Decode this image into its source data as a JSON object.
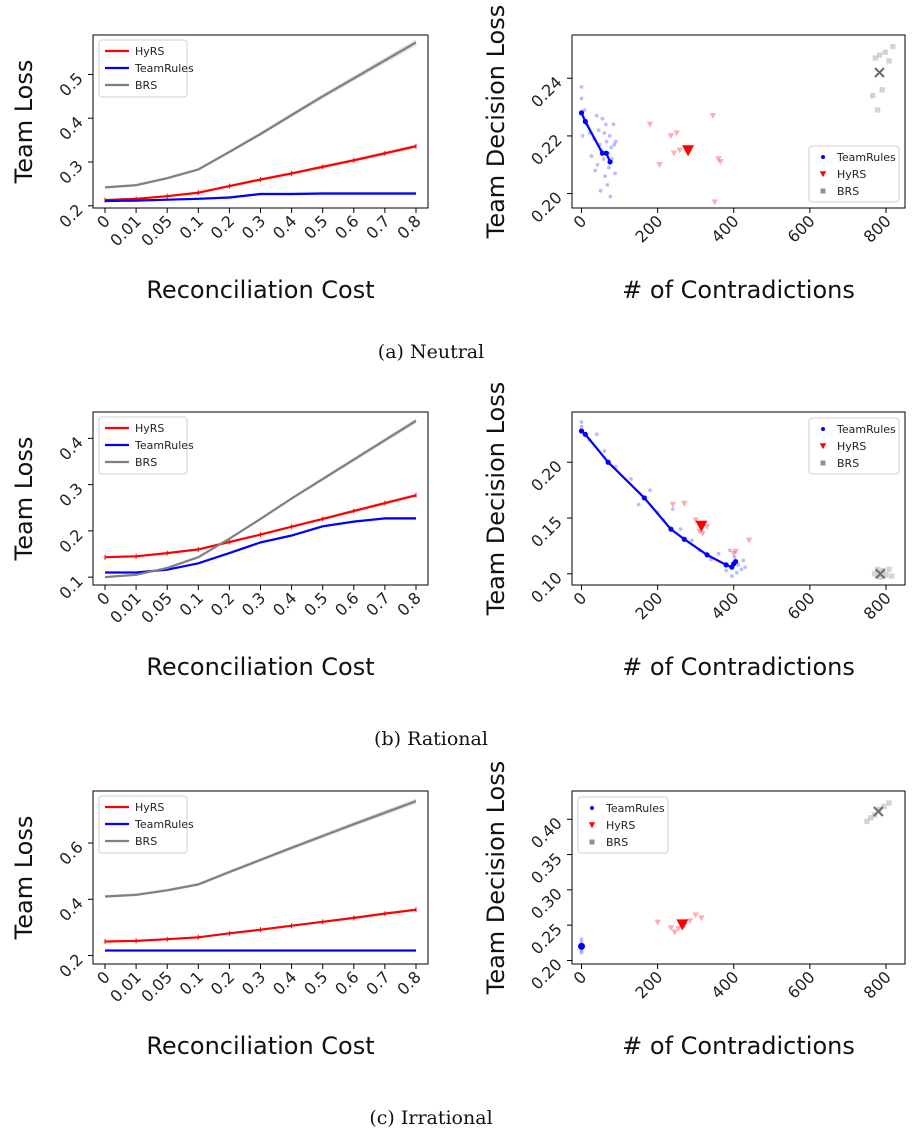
{
  "colors": {
    "hyrs": "#ff0000",
    "teamrules": "#0000ff",
    "brs": "#808080"
  },
  "captions": [
    "(a) Neutral",
    "(b) Rational",
    "(c) Irrational"
  ],
  "chart_data": [
    {
      "type": "line",
      "panel": "a-left",
      "xlabel": "Reconciliation Cost",
      "ylabel": "Team Loss",
      "categories": [
        "0",
        "0.01",
        "0.05",
        "0.1",
        "0.2",
        "0.3",
        "0.4",
        "0.5",
        "0.6",
        "0.7",
        "0.8"
      ],
      "ylim": [
        0.195,
        0.59
      ],
      "yticks": [
        0.2,
        0.3,
        0.4,
        0.5
      ],
      "ytick_labels": [
        "0.2",
        "0.3",
        "0.4",
        "0.5"
      ],
      "legend": "top-left",
      "series": [
        {
          "name": "HyRS",
          "key": "hyrs",
          "values": [
            0.213,
            0.216,
            0.222,
            0.23,
            0.245,
            0.26,
            0.274,
            0.289,
            0.304,
            0.32,
            0.336
          ]
        },
        {
          "name": "TeamRules",
          "key": "teamrules",
          "values": [
            0.211,
            0.212,
            0.214,
            0.216,
            0.219,
            0.227,
            0.227,
            0.228,
            0.228,
            0.228,
            0.228
          ]
        },
        {
          "name": "BRS",
          "key": "brs",
          "values": [
            0.242,
            0.247,
            0.263,
            0.283,
            0.323,
            0.364,
            0.407,
            0.45,
            0.491,
            0.532,
            0.573
          ]
        }
      ]
    },
    {
      "type": "scatter",
      "panel": "a-right",
      "xlabel": "# of Contradictions",
      "ylabel": "Team Decision Loss",
      "xlim": [
        -25,
        850
      ],
      "ylim": [
        0.195,
        0.255
      ],
      "xticks": [
        0,
        200,
        400,
        600,
        800
      ],
      "yticks": [
        0.2,
        0.22,
        0.24
      ],
      "ytick_labels": [
        "0.20",
        "0.22",
        "0.24"
      ],
      "legend": "lower-right",
      "legend_order": [
        "teamrules",
        "hyrs",
        "brs"
      ],
      "teamrules_path": [
        [
          0,
          0.228
        ],
        [
          10,
          0.225
        ],
        [
          55,
          0.214
        ],
        [
          65,
          0.214
        ],
        [
          75,
          0.211
        ]
      ],
      "teamrules_points": [
        [
          0,
          0.237
        ],
        [
          0,
          0.233
        ],
        [
          3,
          0.22
        ],
        [
          8,
          0.229
        ],
        [
          14,
          0.224
        ],
        [
          22,
          0.221
        ],
        [
          26,
          0.213
        ],
        [
          33,
          0.219
        ],
        [
          36,
          0.208
        ],
        [
          40,
          0.227
        ],
        [
          42,
          0.21
        ],
        [
          45,
          0.222
        ],
        [
          48,
          0.217
        ],
        [
          50,
          0.201
        ],
        [
          52,
          0.215
        ],
        [
          55,
          0.226
        ],
        [
          58,
          0.212
        ],
        [
          60,
          0.221
        ],
        [
          62,
          0.206
        ],
        [
          64,
          0.224
        ],
        [
          66,
          0.218
        ],
        [
          68,
          0.203
        ],
        [
          70,
          0.214
        ],
        [
          72,
          0.209
        ],
        [
          74,
          0.22
        ],
        [
          76,
          0.199
        ],
        [
          78,
          0.216
        ],
        [
          80,
          0.212
        ],
        [
          84,
          0.224
        ],
        [
          86,
          0.217
        ],
        [
          88,
          0.207
        ],
        [
          90,
          0.218
        ]
      ],
      "hyrs_points": [
        [
          180,
          0.224
        ],
        [
          205,
          0.21
        ],
        [
          235,
          0.22
        ],
        [
          243,
          0.214
        ],
        [
          250,
          0.221
        ],
        [
          258,
          0.215
        ],
        [
          345,
          0.227
        ],
        [
          350,
          0.197
        ],
        [
          360,
          0.212
        ],
        [
          365,
          0.211
        ]
      ],
      "hyrs_mean": [
        280,
        0.215
      ],
      "brs_points": [
        [
          765,
          0.234
        ],
        [
          772,
          0.247
        ],
        [
          778,
          0.229
        ],
        [
          783,
          0.248
        ],
        [
          790,
          0.236
        ],
        [
          798,
          0.249
        ],
        [
          808,
          0.246
        ],
        [
          818,
          0.251
        ]
      ],
      "brs_mean": [
        783,
        0.242
      ]
    },
    {
      "type": "line",
      "panel": "b-left",
      "xlabel": "Reconciliation Cost",
      "ylabel": "Team Loss",
      "categories": [
        "0",
        "0.01",
        "0.05",
        "0.1",
        "0.2",
        "0.3",
        "0.4",
        "0.5",
        "0.6",
        "0.7",
        "0.8"
      ],
      "ylim": [
        0.083,
        0.457
      ],
      "yticks": [
        0.1,
        0.2,
        0.3,
        0.4
      ],
      "ytick_labels": [
        "0.1",
        "0.2",
        "0.3",
        "0.4"
      ],
      "legend": "top-left",
      "series": [
        {
          "name": "HyRS",
          "key": "hyrs",
          "values": [
            0.143,
            0.145,
            0.152,
            0.16,
            0.176,
            0.192,
            0.209,
            0.226,
            0.243,
            0.26,
            0.277
          ]
        },
        {
          "name": "TeamRules",
          "key": "teamrules",
          "values": [
            0.11,
            0.11,
            0.116,
            0.13,
            0.152,
            0.175,
            0.19,
            0.21,
            0.22,
            0.227,
            0.227
          ]
        },
        {
          "name": "BRS",
          "key": "brs",
          "values": [
            0.1,
            0.105,
            0.12,
            0.143,
            0.183,
            0.226,
            0.27,
            0.312,
            0.354,
            0.396,
            0.438
          ]
        }
      ]
    },
    {
      "type": "scatter",
      "panel": "b-right",
      "xlabel": "# of Contradictions",
      "ylabel": "Team Decision Loss",
      "xlim": [
        -25,
        850
      ],
      "ylim": [
        0.09,
        0.245
      ],
      "xticks": [
        0,
        200,
        400,
        600,
        800
      ],
      "yticks": [
        0.1,
        0.15,
        0.2
      ],
      "ytick_labels": [
        "0.10",
        "0.15",
        "0.20"
      ],
      "legend": "top-right",
      "legend_order": [
        "teamrules",
        "hyrs",
        "brs"
      ],
      "teamrules_path": [
        [
          0,
          0.228
        ],
        [
          10,
          0.225
        ],
        [
          70,
          0.2
        ],
        [
          165,
          0.168
        ],
        [
          235,
          0.14
        ],
        [
          270,
          0.131
        ],
        [
          330,
          0.117
        ],
        [
          380,
          0.108
        ],
        [
          395,
          0.106
        ],
        [
          400,
          0.109
        ],
        [
          405,
          0.111
        ]
      ],
      "teamrules_points": [
        [
          0,
          0.236
        ],
        [
          0,
          0.232
        ],
        [
          20,
          0.22
        ],
        [
          40,
          0.225
        ],
        [
          60,
          0.21
        ],
        [
          90,
          0.196
        ],
        [
          130,
          0.185
        ],
        [
          150,
          0.162
        ],
        [
          180,
          0.175
        ],
        [
          200,
          0.155
        ],
        [
          215,
          0.148
        ],
        [
          240,
          0.158
        ],
        [
          260,
          0.14
        ],
        [
          290,
          0.13
        ],
        [
          310,
          0.121
        ],
        [
          340,
          0.113
        ],
        [
          360,
          0.118
        ],
        [
          380,
          0.103
        ],
        [
          390,
          0.121
        ],
        [
          395,
          0.098
        ],
        [
          402,
          0.115
        ],
        [
          408,
          0.101
        ],
        [
          412,
          0.108
        ],
        [
          420,
          0.104
        ],
        [
          425,
          0.112
        ],
        [
          430,
          0.106
        ]
      ],
      "hyrs_points": [
        [
          240,
          0.162
        ],
        [
          270,
          0.163
        ],
        [
          300,
          0.148
        ],
        [
          310,
          0.138
        ],
        [
          318,
          0.136
        ],
        [
          322,
          0.145
        ],
        [
          330,
          0.142
        ],
        [
          400,
          0.118
        ],
        [
          405,
          0.12
        ],
        [
          440,
          0.13
        ]
      ],
      "hyrs_mean": [
        315,
        0.143
      ],
      "brs_points": [
        [
          770,
          0.1
        ],
        [
          778,
          0.104
        ],
        [
          785,
          0.097
        ],
        [
          792,
          0.103
        ],
        [
          800,
          0.099
        ],
        [
          808,
          0.104
        ],
        [
          815,
          0.098
        ]
      ],
      "brs_mean": [
        785,
        0.1
      ]
    },
    {
      "type": "line",
      "panel": "c-left",
      "xlabel": "Reconciliation Cost",
      "ylabel": "Team Loss",
      "categories": [
        "0",
        "0.01",
        "0.05",
        "0.1",
        "0.2",
        "0.3",
        "0.4",
        "0.5",
        "0.6",
        "0.7",
        "0.8"
      ],
      "ylim": [
        0.17,
        0.785
      ],
      "yticks": [
        0.2,
        0.4,
        0.6
      ],
      "ytick_labels": [
        "0.2",
        "0.4",
        "0.6"
      ],
      "legend": "top-left",
      "series": [
        {
          "name": "HyRS",
          "key": "hyrs",
          "values": [
            0.25,
            0.252,
            0.258,
            0.265,
            0.279,
            0.292,
            0.306,
            0.32,
            0.334,
            0.349,
            0.363
          ]
        },
        {
          "name": "TeamRules",
          "key": "teamrules",
          "values": [
            0.218,
            0.218,
            0.218,
            0.218,
            0.218,
            0.218,
            0.218,
            0.218,
            0.218,
            0.218,
            0.218
          ]
        },
        {
          "name": "BRS",
          "key": "brs",
          "values": [
            0.41,
            0.416,
            0.432,
            0.453,
            0.497,
            0.54,
            0.583,
            0.625,
            0.667,
            0.708,
            0.749
          ]
        }
      ]
    },
    {
      "type": "scatter",
      "panel": "c-right",
      "xlabel": "# of Contradictions",
      "ylabel": "Team Decision Loss",
      "xlim": [
        -25,
        850
      ],
      "ylim": [
        0.195,
        0.44
      ],
      "xticks": [
        0,
        200,
        400,
        600,
        800
      ],
      "yticks": [
        0.2,
        0.25,
        0.3,
        0.35,
        0.4
      ],
      "ytick_labels": [
        "0.20",
        "0.25",
        "0.30",
        "0.35",
        "0.40"
      ],
      "legend": "top-left",
      "legend_order": [
        "teamrules",
        "hyrs",
        "brs"
      ],
      "teamrules_path": [],
      "teamrules_points": [
        [
          0,
          0.23
        ],
        [
          0,
          0.226
        ],
        [
          0,
          0.214
        ],
        [
          0,
          0.211
        ]
      ],
      "teamrules_mean": [
        0,
        0.22
      ],
      "hyrs_points": [
        [
          200,
          0.254
        ],
        [
          235,
          0.246
        ],
        [
          245,
          0.24
        ],
        [
          255,
          0.245
        ],
        [
          270,
          0.25
        ],
        [
          285,
          0.256
        ],
        [
          300,
          0.264
        ],
        [
          315,
          0.26
        ]
      ],
      "hyrs_mean": [
        265,
        0.251
      ],
      "brs_points": [
        [
          750,
          0.397
        ],
        [
          760,
          0.402
        ],
        [
          770,
          0.406
        ],
        [
          782,
          0.414
        ],
        [
          795,
          0.418
        ],
        [
          808,
          0.423
        ]
      ],
      "brs_mean": [
        780,
        0.411
      ]
    }
  ]
}
